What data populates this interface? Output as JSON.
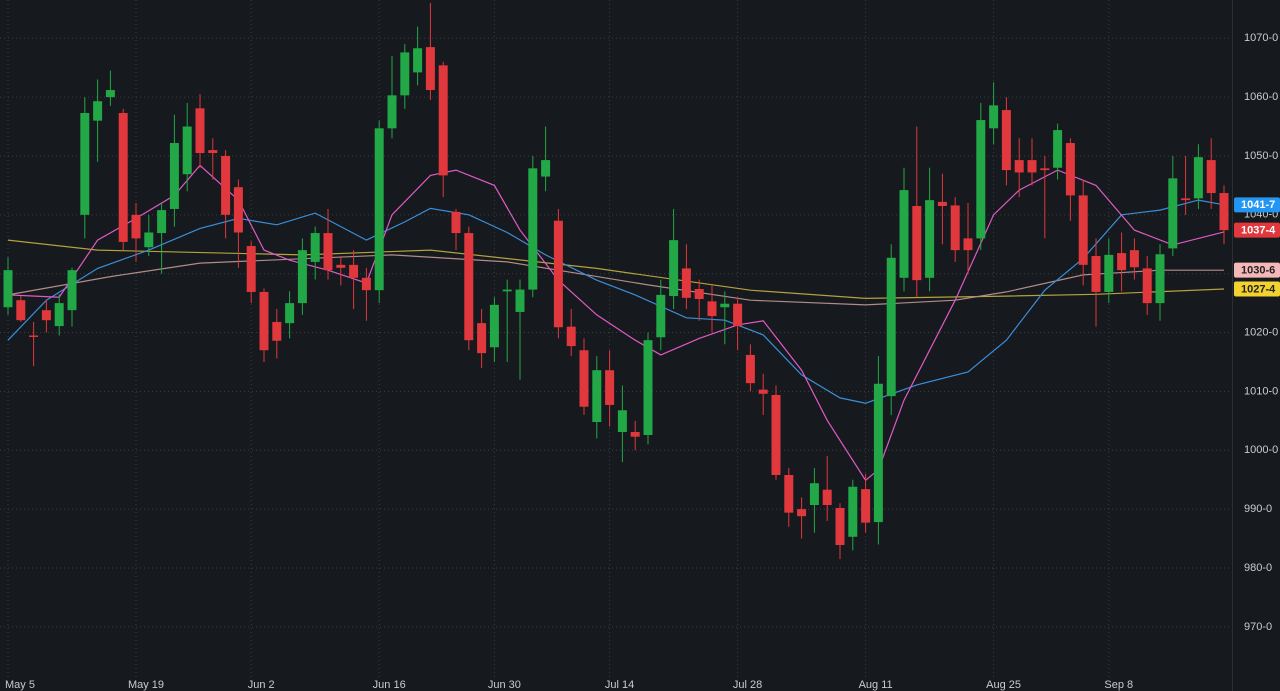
{
  "chart_data": {
    "type": "candlestick",
    "up_color": "#22a846",
    "down_color": "#e0383c",
    "grid": true,
    "ylim": [
      959.1,
      1076.5
    ],
    "yticks": [
      {
        "value": 970,
        "label": "970-0"
      },
      {
        "value": 980,
        "label": "980-0"
      },
      {
        "value": 990,
        "label": "990-0"
      },
      {
        "value": 1000,
        "label": "1000-0"
      },
      {
        "value": 1010,
        "label": "1010-0"
      },
      {
        "value": 1020,
        "label": "1020-0"
      },
      {
        "value": 1030,
        "label": "1030-0"
      },
      {
        "value": 1040,
        "label": "1040-0"
      },
      {
        "value": 1050,
        "label": "1050-0"
      },
      {
        "value": 1060,
        "label": "1060-0"
      },
      {
        "value": 1070,
        "label": "1070-0"
      }
    ],
    "categories": [
      "May 5",
      null,
      null,
      null,
      null,
      null,
      null,
      null,
      null,
      null,
      "May 19",
      null,
      null,
      null,
      null,
      null,
      null,
      null,
      null,
      "Jun 2",
      null,
      null,
      null,
      null,
      null,
      null,
      null,
      null,
      null,
      "Jun 16",
      null,
      null,
      null,
      null,
      null,
      null,
      null,
      null,
      "Jun 30",
      null,
      null,
      null,
      null,
      null,
      null,
      null,
      null,
      "Jul 14",
      null,
      null,
      null,
      null,
      null,
      null,
      null,
      null,
      null,
      "Jul 28",
      null,
      null,
      null,
      null,
      null,
      null,
      null,
      null,
      null,
      "Aug 11",
      null,
      null,
      null,
      null,
      null,
      null,
      null,
      null,
      null,
      "Aug 25",
      null,
      null,
      null,
      null,
      null,
      null,
      null,
      null,
      "Sep 8",
      null,
      null,
      null,
      null,
      null,
      null,
      null,
      null,
      null
    ],
    "open": [
      1024.3,
      1025.5,
      1019.5,
      1023.8,
      1021.1,
      1023.8,
      1040,
      1056,
      1060,
      1057.3,
      1040,
      1034.5,
      1036.9,
      1041,
      1046.9,
      1058.1,
      1051,
      1050,
      1044.7,
      1034.7,
      1026.9,
      1021.8,
      1021.6,
      1025,
      1032,
      1036.9,
      1031.5,
      1031.5,
      1029.3,
      1027.2,
      1054.7,
      1060.3,
      1064.2,
      1068.5,
      1065.4,
      1040.5,
      1036.9,
      1021.6,
      1017.5,
      1027,
      1023.5,
      1027.3,
      1046.5,
      1039,
      1021,
      1017,
      1004.8,
      1013.6,
      1003.1,
      1003.1,
      1002.6,
      1019.2,
      1026.2,
      1030.9,
      1027.4,
      1025.3,
      1024.3,
      1024.9,
      1016.2,
      1010.3,
      1009.4,
      995.8,
      990,
      990.7,
      993.3,
      990.2,
      985.3,
      993.4,
      987.8,
      1009.2,
      1029.3,
      1041.5,
      1029.3,
      1042.2,
      1041.6,
      1036,
      1036,
      1054.7,
      1057.8,
      1049.3,
      1049.3,
      1047.9,
      1048,
      1052.2,
      1043.3,
      1033,
      1026.9,
      1033.5,
      1034,
      1030.9,
      1025,
      1034.3,
      1042.8,
      1042.8,
      1049.3,
      1043.7
    ],
    "high": [
      1032.8,
      1026.2,
      1021.8,
      1025.5,
      1026.5,
      1031,
      1060,
      1063,
      1064.5,
      1058,
      1042,
      1040,
      1042,
      1057,
      1059,
      1060.5,
      1053,
      1051,
      1046,
      1035.5,
      1027.5,
      1024,
      1027,
      1036,
      1038,
      1041,
      1033,
      1034,
      1031,
      1056,
      1067,
      1069,
      1072,
      1076,
      1066,
      1041,
      1038,
      1024,
      1026,
      1029,
      1029,
      1050,
      1055,
      1041,
      1024,
      1019,
      1016,
      1017,
      1011,
      1005,
      1020,
      1029,
      1041,
      1035,
      1029,
      1028,
      1027,
      1026,
      1018,
      1013,
      1011,
      997,
      992,
      997,
      999,
      991,
      995,
      996,
      1016,
      1035,
      1048,
      1055,
      1048,
      1047,
      1043,
      1042,
      1059,
      1062.5,
      1060,
      1053,
      1053,
      1050,
      1055.5,
      1053,
      1046,
      1036,
      1036,
      1037,
      1036,
      1033,
      1035,
      1050,
      1050,
      1052,
      1053,
      1045
    ],
    "low": [
      1023,
      1021.8,
      1014.3,
      1020,
      1019.5,
      1021,
      1036,
      1049,
      1058.5,
      1034,
      1032,
      1033,
      1030,
      1038,
      1044,
      1048,
      1046,
      1036,
      1031,
      1025,
      1015,
      1015.6,
      1019,
      1023,
      1029,
      1029,
      1028,
      1024,
      1022,
      1025,
      1053,
      1058,
      1062,
      1059.5,
      1043,
      1034,
      1017,
      1014,
      1015,
      1015,
      1012,
      1026,
      1044,
      1019,
      1016,
      1006,
      1002,
      1004,
      998,
      1000,
      1001,
      1017,
      1024,
      1024,
      1022,
      1020,
      1018,
      1017,
      1010,
      1006,
      995,
      987,
      985,
      986,
      988,
      981.5,
      983,
      986,
      984,
      1006,
      1027,
      1026,
      1027,
      1035,
      1032,
      1030,
      1034,
      1052,
      1045,
      1043,
      1045,
      1036,
      1046,
      1039,
      1028,
      1021,
      1025,
      1027,
      1029,
      1023,
      1022,
      1033,
      1040,
      1041,
      1041,
      1035
    ],
    "close": [
      1030.6,
      1022.1,
      1019.3,
      1022.1,
      1025,
      1030.6,
      1057.3,
      1059.3,
      1061.2,
      1035.4,
      1036,
      1037,
      1040.8,
      1052.2,
      1055,
      1050.5,
      1050.5,
      1040,
      1037,
      1026.9,
      1017,
      1018.6,
      1025,
      1034,
      1036.9,
      1030.6,
      1031,
      1029.3,
      1027.2,
      1054.7,
      1060.3,
      1067.6,
      1068.3,
      1061.2,
      1046.7,
      1036.9,
      1018.7,
      1016.5,
      1024.7,
      1027.3,
      1027.3,
      1047.9,
      1049.3,
      1020.9,
      1017.7,
      1007.4,
      1013.6,
      1007.7,
      1006.8,
      1002.3,
      1018.7,
      1026.4,
      1035.7,
      1025.9,
      1025.7,
      1022.8,
      1024.9,
      1021.1,
      1011.4,
      1009.6,
      995.8,
      989.4,
      988.8,
      994.4,
      990.7,
      983.9,
      993.8,
      987.7,
      1011.3,
      1032.7,
      1044.2,
      1028.9,
      1042.5,
      1041.5,
      1034,
      1034,
      1056.1,
      1058.6,
      1047.6,
      1047.2,
      1047.2,
      1047.6,
      1054.4,
      1043.3,
      1031.5,
      1026.9,
      1033.2,
      1030.6,
      1031.1,
      1025,
      1033.3,
      1046.2,
      1042.5,
      1049.8,
      1043.7,
      1037.4
    ],
    "lines": [
      {
        "color": "#b3a23e",
        "x": [
          0,
          7,
          23,
          33,
          46,
          58,
          67,
          78,
          85,
          95
        ],
        "values": [
          1035.7,
          1034,
          1033.2,
          1034,
          1030.9,
          1027.2,
          1025.8,
          1026.2,
          1026.5,
          1027.4
        ]
      },
      {
        "color": "#b08c8a",
        "x": [
          0,
          8,
          15,
          30,
          39,
          50,
          58,
          67,
          74,
          78,
          84,
          90,
          95
        ],
        "values": [
          1026.4,
          1029.5,
          1031.8,
          1033.2,
          1032,
          1028.1,
          1025.5,
          1024.7,
          1025.5,
          1026.9,
          1029.8,
          1030.6,
          1030.6
        ]
      },
      {
        "color": "#3a8fd9",
        "x": [
          0,
          3,
          7,
          11,
          15,
          18,
          21,
          24,
          28,
          31,
          33,
          36,
          39,
          42,
          46,
          49,
          53,
          56,
          59,
          62,
          65,
          67,
          71,
          75,
          78,
          81,
          84,
          87,
          90,
          93,
          95
        ],
        "values": [
          1018.7,
          1025.5,
          1030.9,
          1034,
          1037.7,
          1039.4,
          1038.3,
          1040.3,
          1035.7,
          1038.8,
          1041.1,
          1040,
          1037,
          1033.2,
          1028.9,
          1026.4,
          1022.5,
          1022.1,
          1019.6,
          1012.8,
          1008.9,
          1008,
          1011.1,
          1013.3,
          1018.7,
          1027.2,
          1032.6,
          1040,
          1040.8,
          1042.5,
          1041.7
        ]
      },
      {
        "color": "#e05ac6",
        "x": [
          0,
          4,
          7,
          10,
          13,
          15,
          18,
          20,
          22,
          25,
          28,
          30,
          33,
          35,
          38,
          40,
          43,
          46,
          49,
          51,
          54,
          57,
          59,
          62,
          64,
          67,
          68,
          70,
          74,
          77,
          79,
          82,
          85,
          88,
          91,
          95
        ],
        "values": [
          1026.4,
          1026,
          1035.7,
          1039.4,
          1043.3,
          1048.4,
          1042.5,
          1034,
          1032.3,
          1030.6,
          1028.4,
          1040,
          1046.7,
          1047.6,
          1045,
          1037.4,
          1028.9,
          1023,
          1018.7,
          1016.2,
          1019,
          1021.3,
          1022,
          1013.6,
          1005.1,
          994.9,
          996.7,
          1008.5,
          1025.5,
          1040,
          1044.2,
          1047.6,
          1045,
          1037.4,
          1034.9,
          1037.1
        ]
      }
    ],
    "price_tags": [
      {
        "value": 1041.7,
        "label": "1041-7",
        "color": "#2196f3",
        "text_color": "#ffffff"
      },
      {
        "value": 1037.4,
        "label": "1037-4",
        "color": "#e0383c",
        "text_color": "#ffffff"
      },
      {
        "value": 1030.6,
        "label": "1030-6",
        "color": "#f5b8b8",
        "text_color": "#222222"
      },
      {
        "value": 1027.4,
        "label": "1027-4",
        "color": "#f2d22e",
        "text_color": "#222222"
      }
    ]
  }
}
